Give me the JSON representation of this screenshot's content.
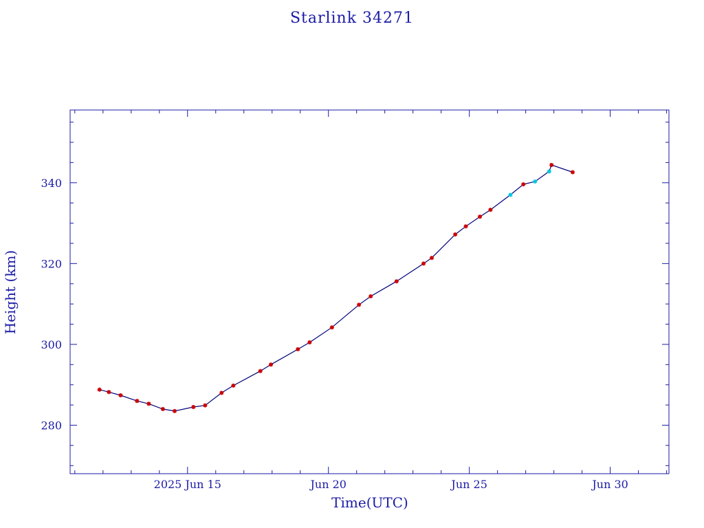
{
  "chart_data": {
    "type": "line",
    "title": "Starlink 34271",
    "xlabel": "Time(UTC)",
    "ylabel": "Height (km)",
    "x_ticks": [
      {
        "date": "2025-06-15",
        "label": "2025 Jun 15"
      },
      {
        "date": "2025-06-20",
        "label": "Jun 20"
      },
      {
        "date": "2025-06-25",
        "label": "Jun 25"
      },
      {
        "date": "2025-06-30",
        "label": "Jun 30"
      }
    ],
    "y_ticks": [
      280,
      300,
      320,
      340
    ],
    "xlim": [
      "2025-06-10T20:00",
      "2025-07-02T02:00"
    ],
    "ylim": [
      268,
      358
    ],
    "grid": false,
    "line_color": "#00007a",
    "series": [
      {
        "marker_color": "#cc0000",
        "points": [
          {
            "x": "2025-06-11T21:00",
            "y": 288.8
          },
          {
            "x": "2025-06-12T05:00",
            "y": 288.2
          },
          {
            "x": "2025-06-12T15:00",
            "y": 287.4
          },
          {
            "x": "2025-06-13T05:00",
            "y": 286.0
          },
          {
            "x": "2025-06-13T15:00",
            "y": 285.3
          },
          {
            "x": "2025-06-14T03:00",
            "y": 284.0
          },
          {
            "x": "2025-06-14T13:00",
            "y": 283.5
          },
          {
            "x": "2025-06-15T05:00",
            "y": 284.5
          },
          {
            "x": "2025-06-15T15:00",
            "y": 284.9
          },
          {
            "x": "2025-06-16T05:00",
            "y": 288.0
          },
          {
            "x": "2025-06-16T15:00",
            "y": 289.8
          },
          {
            "x": "2025-06-17T14:00",
            "y": 293.4
          },
          {
            "x": "2025-06-17T23:00",
            "y": 295.0
          },
          {
            "x": "2025-06-18T22:00",
            "y": 298.8
          },
          {
            "x": "2025-06-19T08:00",
            "y": 300.5
          },
          {
            "x": "2025-06-20T03:00",
            "y": 304.2
          },
          {
            "x": "2025-06-21T02:00",
            "y": 309.8
          },
          {
            "x": "2025-06-21T12:00",
            "y": 311.9
          },
          {
            "x": "2025-06-22T10:00",
            "y": 315.6
          },
          {
            "x": "2025-06-23T09:00",
            "y": 320.0
          },
          {
            "x": "2025-06-23T16:00",
            "y": 321.4
          },
          {
            "x": "2025-06-24T12:00",
            "y": 327.2
          },
          {
            "x": "2025-06-24T21:00",
            "y": 329.2
          },
          {
            "x": "2025-06-25T09:00",
            "y": 331.6
          },
          {
            "x": "2025-06-25T18:00",
            "y": 333.3
          },
          {
            "x": "2025-06-26T22:00",
            "y": 339.6
          },
          {
            "x": "2025-06-27T22:00",
            "y": 344.4
          },
          {
            "x": "2025-06-28T16:00",
            "y": 342.6
          }
        ]
      },
      {
        "marker_color": "#00c8e0",
        "points": [
          {
            "x": "2025-06-26T11:00",
            "y": 337.0
          },
          {
            "x": "2025-06-27T08:00",
            "y": 340.3
          },
          {
            "x": "2025-06-27T20:00",
            "y": 342.8
          }
        ]
      }
    ]
  }
}
